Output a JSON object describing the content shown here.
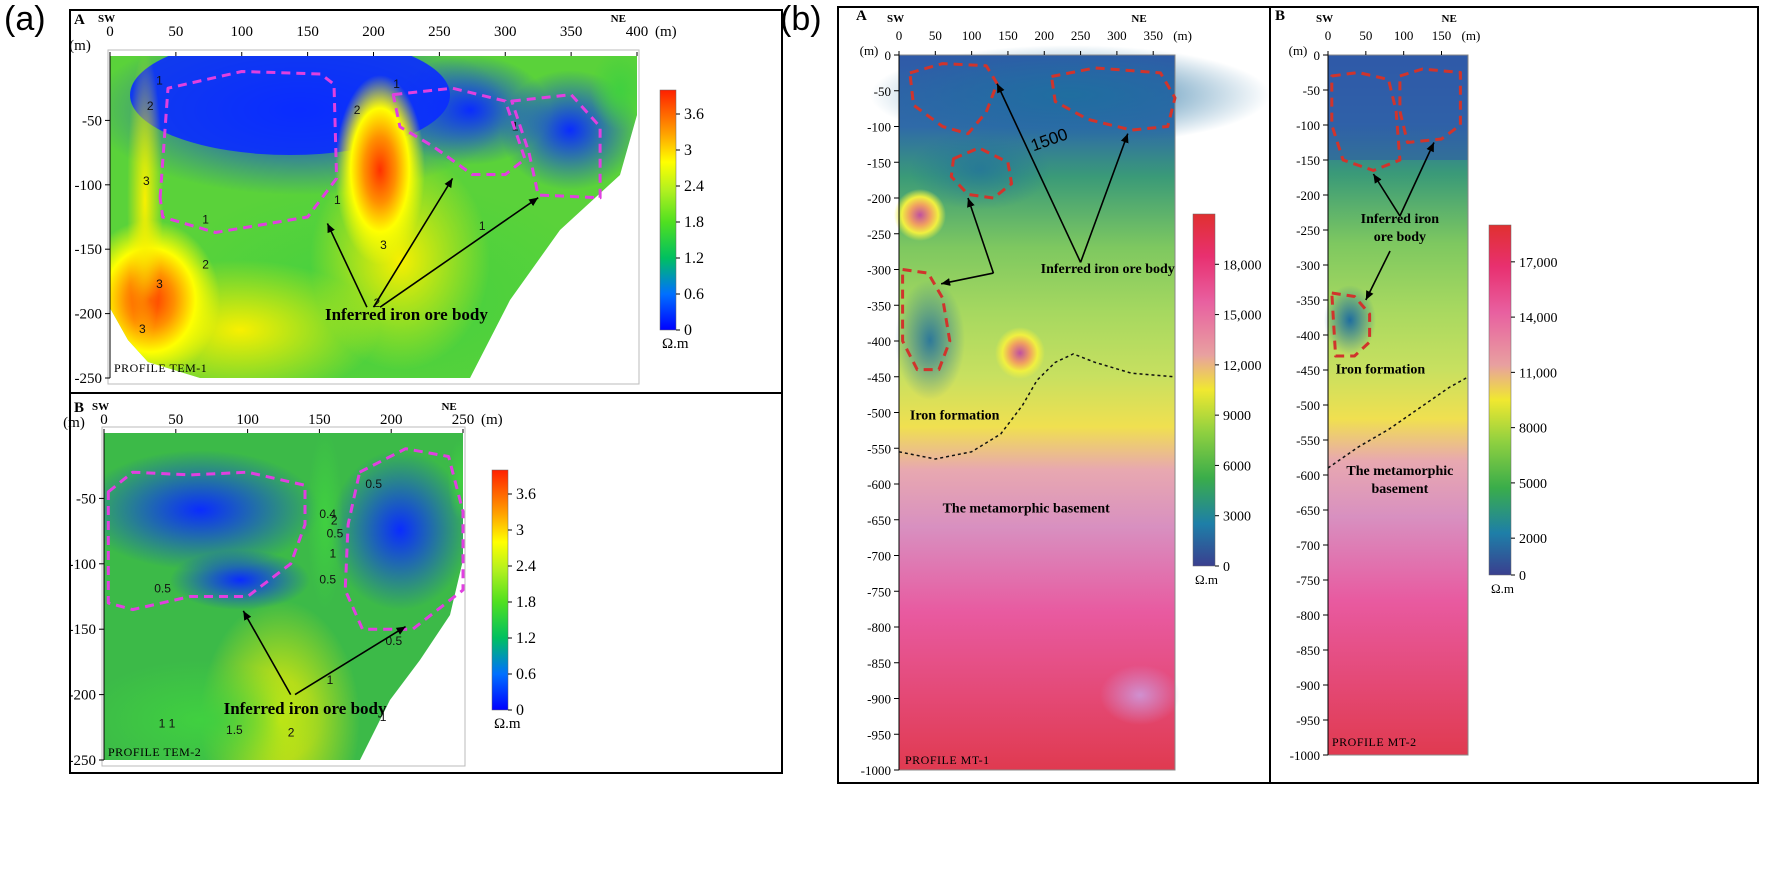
{
  "panel_labels": {
    "a": "(a)",
    "b": "(b)"
  },
  "colors": {
    "dashed_magenta": "#e040e0",
    "dashed_red": "#d0342c",
    "arrow": "#000000"
  },
  "chart_data": [
    {
      "id": "tem1",
      "type": "heatmap",
      "subpanel": "A",
      "profile": "PROFILE   TEM-1",
      "dir_left": "SW",
      "dir_right": "NE",
      "unit_x": "(m)",
      "unit_y": "(m)",
      "xlim": [
        0,
        400
      ],
      "ylim": [
        -250,
        0
      ],
      "x_ticks": [
        "0",
        "50",
        "100",
        "150",
        "200",
        "250",
        "300",
        "350",
        "400"
      ],
      "y_ticks": [
        "-50",
        "-100",
        "-150",
        "-200",
        "-250"
      ],
      "colorbar_ticks": [
        "3.6",
        "3",
        "2.4",
        "1.8",
        "1.2",
        "0.6",
        "0"
      ],
      "colorbar_range": [
        0,
        4
      ],
      "colorbar_unit": "Ω.m",
      "annotation": "Inferred iron ore body",
      "contour_labels": [
        {
          "t": "1",
          "x": 35,
          "y": -22
        },
        {
          "t": "2",
          "x": 28,
          "y": -42
        },
        {
          "t": "3",
          "x": 25,
          "y": -100
        },
        {
          "t": "3",
          "x": 35,
          "y": -180
        },
        {
          "t": "3",
          "x": 22,
          "y": -215
        },
        {
          "t": "2",
          "x": 70,
          "y": -165
        },
        {
          "t": "1",
          "x": 70,
          "y": -130
        },
        {
          "t": "1",
          "x": 170,
          "y": -115
        },
        {
          "t": "2",
          "x": 185,
          "y": -45
        },
        {
          "t": "3",
          "x": 205,
          "y": -150
        },
        {
          "t": "2",
          "x": 200,
          "y": -195
        },
        {
          "t": "1",
          "x": 215,
          "y": -25
        },
        {
          "t": "1",
          "x": 305,
          "y": -58
        },
        {
          "t": "1",
          "x": 280,
          "y": -135
        }
      ],
      "ore_bodies": [
        [
          [
            38,
            -110
          ],
          [
            44,
            -25
          ],
          [
            100,
            -12
          ],
          [
            160,
            -14
          ],
          [
            170,
            -22
          ],
          [
            172,
            -95
          ],
          [
            150,
            -125
          ],
          [
            80,
            -137
          ],
          [
            40,
            -125
          ]
        ],
        [
          [
            215,
            -30
          ],
          [
            260,
            -25
          ],
          [
            300,
            -35
          ],
          [
            315,
            -80
          ],
          [
            300,
            -92
          ],
          [
            275,
            -92
          ],
          [
            245,
            -70
          ],
          [
            220,
            -55
          ]
        ],
        [
          [
            305,
            -35
          ],
          [
            350,
            -30
          ],
          [
            372,
            -55
          ],
          [
            372,
            -110
          ],
          [
            325,
            -108
          ],
          [
            318,
            -75
          ]
        ]
      ],
      "arrows": [
        {
          "from": [
            195,
            -195
          ],
          "to": [
            165,
            -130
          ]
        },
        {
          "from": [
            200,
            -195
          ],
          "to": [
            260,
            -95
          ]
        },
        {
          "from": [
            205,
            -195
          ],
          "to": [
            325,
            -110
          ]
        }
      ],
      "arrow_label": {
        "x": 225,
        "y": -205
      }
    },
    {
      "id": "tem2",
      "type": "heatmap",
      "subpanel": "B",
      "profile": "PROFILE   TEM-2",
      "dir_left": "SW",
      "dir_right": "NE",
      "unit_x": "(m)",
      "unit_y": "(m)",
      "xlim": [
        0,
        250
      ],
      "ylim": [
        -250,
        0
      ],
      "x_ticks": [
        "0",
        "50",
        "100",
        "150",
        "200",
        "250"
      ],
      "y_ticks": [
        "-50",
        "-100",
        "-150",
        "-200",
        "-250"
      ],
      "colorbar_ticks": [
        "3.6",
        "3",
        "2.4",
        "1.8",
        "1.2",
        "0.6",
        "0"
      ],
      "colorbar_range": [
        0,
        4
      ],
      "colorbar_unit": "Ω.m",
      "annotation": "Inferred iron ore body",
      "contour_labels": [
        {
          "t": "0.5",
          "x": 182,
          "y": -42
        },
        {
          "t": "0.4",
          "x": 150,
          "y": -65
        },
        {
          "t": "2",
          "x": 158,
          "y": -70
        },
        {
          "t": "0.5",
          "x": 155,
          "y": -80
        },
        {
          "t": "1",
          "x": 157,
          "y": -95
        },
        {
          "t": "0.5",
          "x": 150,
          "y": -115
        },
        {
          "t": "0.5",
          "x": 35,
          "y": -122
        },
        {
          "t": "0.5",
          "x": 196,
          "y": -162
        },
        {
          "t": "1",
          "x": 155,
          "y": -192
        },
        {
          "t": "1 1",
          "x": 38,
          "y": -225
        },
        {
          "t": "1.5",
          "x": 85,
          "y": -230
        },
        {
          "t": "2",
          "x": 128,
          "y": -232
        },
        {
          "t": "1",
          "x": 192,
          "y": -220
        }
      ],
      "ore_bodies": [
        [
          [
            3,
            -45
          ],
          [
            20,
            -30
          ],
          [
            60,
            -32
          ],
          [
            100,
            -30
          ],
          [
            140,
            -40
          ],
          [
            140,
            -70
          ],
          [
            130,
            -100
          ],
          [
            100,
            -125
          ],
          [
            60,
            -125
          ],
          [
            20,
            -135
          ],
          [
            3,
            -130
          ]
        ],
        [
          [
            178,
            -30
          ],
          [
            210,
            -12
          ],
          [
            240,
            -18
          ],
          [
            250,
            -60
          ],
          [
            250,
            -120
          ],
          [
            215,
            -150
          ],
          [
            180,
            -150
          ],
          [
            168,
            -120
          ],
          [
            170,
            -70
          ]
        ]
      ],
      "arrows": [
        {
          "from": [
            130,
            -200
          ],
          "to": [
            97,
            -136
          ]
        },
        {
          "from": [
            133,
            -200
          ],
          "to": [
            210,
            -148
          ]
        }
      ],
      "arrow_label": {
        "x": 140,
        "y": -215
      }
    },
    {
      "id": "mt1",
      "type": "heatmap",
      "subpanel": "A",
      "profile": "PROFILE   MT-1",
      "dir_left": "SW",
      "dir_right": "NE",
      "unit_x": "(m)",
      "unit_y": "(m)",
      "xlim": [
        0,
        380
      ],
      "ylim": [
        -1000,
        0
      ],
      "x_ticks": [
        "0",
        "50",
        "100",
        "150",
        "200",
        "250",
        "300",
        "350"
      ],
      "y_ticks": [
        "0",
        "-50",
        "-100",
        "-150",
        "-200",
        "-250",
        "-300",
        "-350",
        "-400",
        "-450",
        "-500",
        "-550",
        "-600",
        "-650",
        "-700",
        "-750",
        "-800",
        "-850",
        "-900",
        "-950",
        "-1000"
      ],
      "colorbar_ticks": [
        "18,000",
        "15,000",
        "12,000",
        "9000",
        "6000",
        "3000",
        "0"
      ],
      "colorbar_range": [
        0,
        21000
      ],
      "colorbar_unit": "Ω.m",
      "contour_label": "1500",
      "annotation": "Inferred iron ore body",
      "formation_label": "Iron formation",
      "basement_label": "The metamorphic basement",
      "ore_bodies": [
        [
          [
            15,
            -25
          ],
          [
            60,
            -12
          ],
          [
            120,
            -15
          ],
          [
            135,
            -40
          ],
          [
            120,
            -80
          ],
          [
            95,
            -110
          ],
          [
            60,
            -100
          ],
          [
            20,
            -70
          ]
        ],
        [
          [
            210,
            -30
          ],
          [
            270,
            -18
          ],
          [
            360,
            -25
          ],
          [
            380,
            -60
          ],
          [
            370,
            -100
          ],
          [
            320,
            -105
          ],
          [
            260,
            -90
          ],
          [
            215,
            -65
          ]
        ],
        [
          [
            75,
            -145
          ],
          [
            110,
            -130
          ],
          [
            150,
            -150
          ],
          [
            155,
            -180
          ],
          [
            130,
            -200
          ],
          [
            95,
            -195
          ],
          [
            72,
            -170
          ]
        ],
        [
          [
            5,
            -300
          ],
          [
            40,
            -305
          ],
          [
            60,
            -340
          ],
          [
            70,
            -400
          ],
          [
            55,
            -440
          ],
          [
            25,
            -440
          ],
          [
            5,
            -400
          ]
        ]
      ],
      "arrows": [
        {
          "from": [
            250,
            -290
          ],
          "to": [
            135,
            -40
          ]
        },
        {
          "from": [
            250,
            -290
          ],
          "to": [
            315,
            -110
          ]
        },
        {
          "from": [
            130,
            -305
          ],
          "to": [
            95,
            -200
          ]
        },
        {
          "from": [
            130,
            -305
          ],
          "to": [
            58,
            -320
          ]
        }
      ],
      "boundary": [
        [
          0,
          -555
        ],
        [
          50,
          -565
        ],
        [
          100,
          -555
        ],
        [
          140,
          -530
        ],
        [
          170,
          -490
        ],
        [
          190,
          -455
        ],
        [
          215,
          -430
        ],
        [
          240,
          -418
        ],
        [
          270,
          -430
        ],
        [
          320,
          -445
        ],
        [
          380,
          -450
        ]
      ],
      "label_pos": {
        "annotation": [
          195,
          -305
        ],
        "formation": [
          15,
          -510
        ],
        "basement": [
          60,
          -640
        ],
        "c1500": [
          185,
          -135
        ]
      }
    },
    {
      "id": "mt2",
      "type": "heatmap",
      "subpanel": "B",
      "profile": "PROFILE   MT-2",
      "dir_left": "SW",
      "dir_right": "NE",
      "unit_x": "(m)",
      "unit_y": "(m)",
      "xlim": [
        0,
        185
      ],
      "ylim": [
        -1000,
        0
      ],
      "x_ticks": [
        "0",
        "50",
        "100",
        "150"
      ],
      "y_ticks": [
        "0",
        "-50",
        "-100",
        "-150",
        "-200",
        "-250",
        "-300",
        "-350",
        "-400",
        "-450",
        "-500",
        "-550",
        "-600",
        "-650",
        "-700",
        "-750",
        "-800",
        "-850",
        "-900",
        "-950",
        "-1000"
      ],
      "colorbar_ticks": [
        "17,000",
        "14,000",
        "11,000",
        "8000",
        "5000",
        "2000",
        "0"
      ],
      "colorbar_range": [
        0,
        19000
      ],
      "colorbar_unit": "Ω.m",
      "annotation": "Inferred iron\nore body",
      "formation_label": "Iron formation",
      "basement_label": "The metamorphic\nbasement",
      "ore_bodies": [
        [
          [
            5,
            -30
          ],
          [
            40,
            -25
          ],
          [
            80,
            -35
          ],
          [
            90,
            -80
          ],
          [
            95,
            -150
          ],
          [
            60,
            -165
          ],
          [
            20,
            -150
          ],
          [
            5,
            -100
          ]
        ],
        [
          [
            95,
            -30
          ],
          [
            125,
            -20
          ],
          [
            175,
            -25
          ],
          [
            175,
            -100
          ],
          [
            150,
            -120
          ],
          [
            105,
            -125
          ],
          [
            95,
            -80
          ]
        ],
        [
          [
            5,
            -340
          ],
          [
            35,
            -345
          ],
          [
            55,
            -370
          ],
          [
            55,
            -410
          ],
          [
            35,
            -430
          ],
          [
            10,
            -430
          ]
        ]
      ],
      "arrows": [
        {
          "from": [
            95,
            -230
          ],
          "to": [
            60,
            -170
          ]
        },
        {
          "from": [
            95,
            -230
          ],
          "to": [
            140,
            -125
          ]
        },
        {
          "from": [
            82,
            -280
          ],
          "to": [
            50,
            -350
          ]
        }
      ],
      "boundary": [
        [
          0,
          -590
        ],
        [
          40,
          -560
        ],
        [
          80,
          -535
        ],
        [
          120,
          -505
        ],
        [
          160,
          -475
        ],
        [
          185,
          -460
        ]
      ],
      "label_pos": {
        "annotation": [
          95,
          -240
        ],
        "formation": [
          10,
          -455
        ],
        "basement": [
          95,
          -600
        ]
      }
    }
  ]
}
